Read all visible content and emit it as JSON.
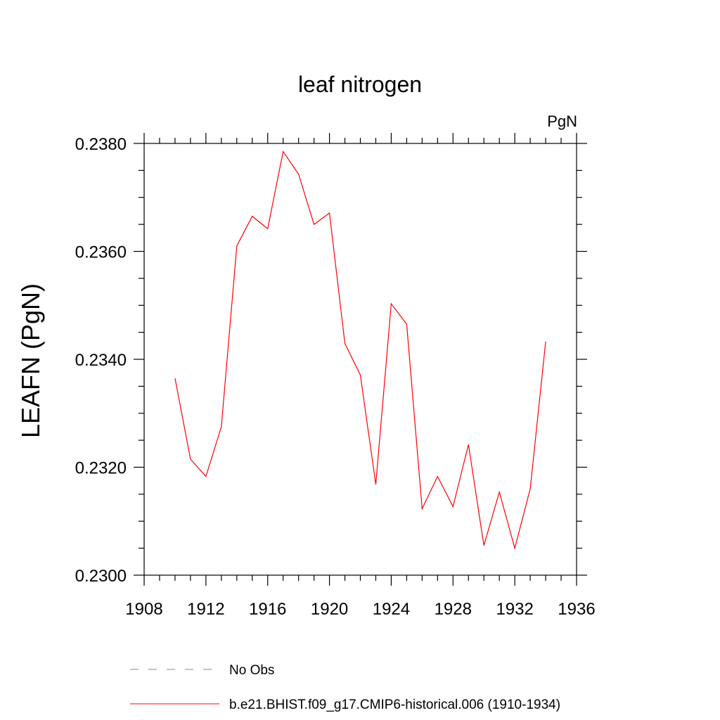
{
  "chart_data": {
    "type": "line",
    "title": "leaf nitrogen",
    "units": "PgN",
    "ylabel": "LEAFN  (PgN)",
    "xlabel": "",
    "xlim": [
      1908,
      1936
    ],
    "ylim": [
      0.23,
      0.238
    ],
    "xticks": [
      1908,
      1912,
      1916,
      1920,
      1924,
      1928,
      1932,
      1936
    ],
    "xtick_labels": [
      "1908",
      "1912",
      "1916",
      "1920",
      "1924",
      "1928",
      "1932",
      "1936"
    ],
    "yticks": [
      0.23,
      0.232,
      0.234,
      0.236,
      0.238
    ],
    "ytick_labels": [
      "0.2300",
      "0.2320",
      "0.2340",
      "0.2360",
      "0.2380"
    ],
    "grid": false,
    "legend_position": "bottom",
    "series": [
      {
        "name": "No Obs",
        "color": "#8080c0",
        "style": "dashed",
        "x": [],
        "y": []
      },
      {
        "name": "b.e21.BHIST.f09_g17.CMIP6-historical.006 (1910-1934)",
        "color": "#ff0000",
        "style": "solid",
        "x": [
          1910,
          1911,
          1912,
          1913,
          1914,
          1915,
          1916,
          1917,
          1918,
          1919,
          1920,
          1921,
          1922,
          1923,
          1924,
          1925,
          1926,
          1927,
          1928,
          1929,
          1930,
          1931,
          1932,
          1933,
          1934
        ],
        "y": [
          0.23365,
          0.23215,
          0.23183,
          0.23275,
          0.2361,
          0.23665,
          0.23642,
          0.23785,
          0.23743,
          0.2365,
          0.23671,
          0.23429,
          0.23371,
          0.23168,
          0.23503,
          0.23465,
          0.23123,
          0.23183,
          0.23127,
          0.23242,
          0.23055,
          0.23154,
          0.2305,
          0.2316,
          0.23433
        ]
      }
    ]
  }
}
